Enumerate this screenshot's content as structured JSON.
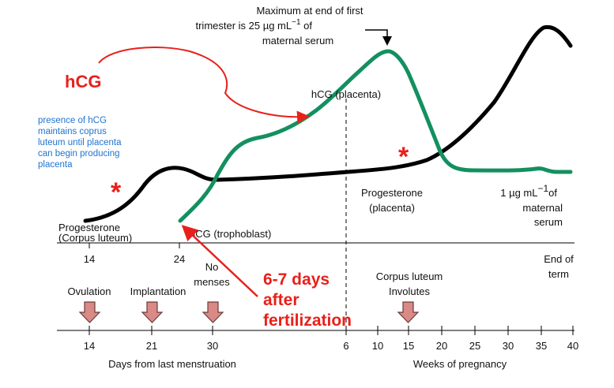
{
  "chart_data": {
    "type": "line",
    "title": "",
    "series": [
      {
        "name": "Progesterone",
        "color": "#000000"
      },
      {
        "name": "hCG",
        "color": "#13905f"
      }
    ],
    "xaxis_days": {
      "label": "Days from last menstruation",
      "ticks": [
        "14",
        "21",
        "30"
      ]
    },
    "xaxis_weeks": {
      "label": "Weeks of pregnancy",
      "ticks": [
        "6",
        "10",
        "15",
        "20",
        "25",
        "30",
        "35",
        "40"
      ]
    },
    "upper_ticks": [
      "14",
      "24"
    ],
    "end_term": [
      "End of",
      "term"
    ],
    "annotations": {
      "max_note": [
        "Maximum at end of first",
        "trimester is 25 µg mL",
        "−1",
        " of",
        "maternal serum"
      ],
      "hcg_placenta": "hCG (placenta)",
      "hcg_trophoblast": "hCG (trophoblast)",
      "prog_corpus": [
        "Progesterone",
        "(Corpus luteum)"
      ],
      "prog_placenta": [
        "Progesterone",
        "(placenta)"
      ],
      "maternal_level": [
        "1 µg mL",
        "−1",
        "of",
        "maternal",
        "serum"
      ],
      "hcg_big": "hCG",
      "blue_note": [
        "presence of hCG",
        "maintains coprus",
        "luteum until placenta",
        "can begin producing",
        "placenta"
      ],
      "fertilization": [
        "6-7 days",
        "after",
        "fertilization"
      ],
      "asterisk": "*"
    },
    "events": [
      {
        "label": "Ovulation"
      },
      {
        "label": "Implantation"
      },
      {
        "label": "No",
        "label2": "menses"
      },
      {
        "label": "Corpus luteum",
        "label2": "Involutes"
      }
    ]
  }
}
